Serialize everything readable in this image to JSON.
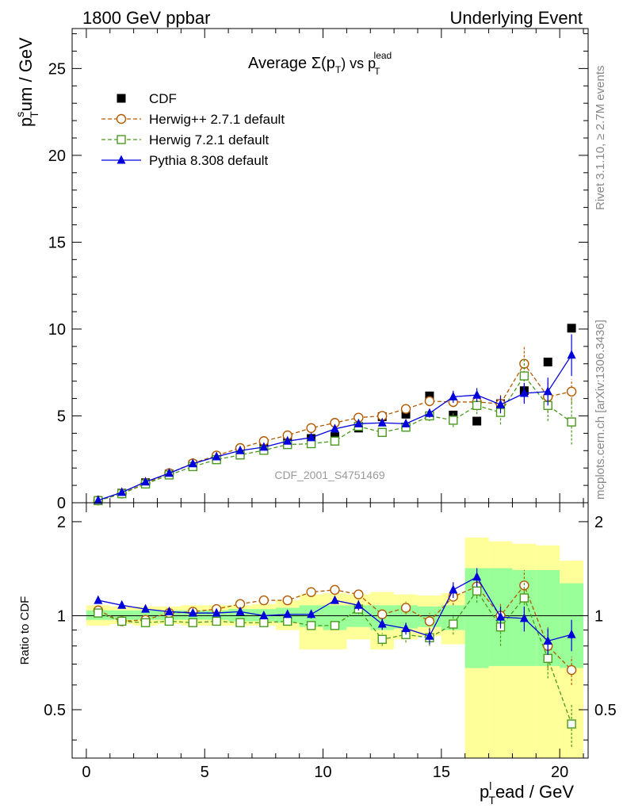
{
  "header": {
    "left": "1800 GeV ppbar",
    "right": "Underlying Event"
  },
  "side_labels": {
    "rivet": "Rivet 3.1.10, ≥ 2.7M events",
    "mcplots": "mcplots.cern.ch [arXiv:1306.3436]"
  },
  "chart_data": [
    {
      "type": "scatter",
      "title_main": "Average Σ(p",
      "title_sub_T": "T",
      "title_mid": ") vs p",
      "title_sup_lead": "lead",
      "ylabel_main": "p",
      "ylabel_sup": "s",
      "ylabel_sub": "T",
      "ylabel_rest": "um / GeV",
      "watermark": "CDF_2001_S4751469",
      "xlim": [
        -0.6,
        21.2
      ],
      "ylim": [
        0,
        27.3
      ],
      "yticks": [
        0,
        5,
        10,
        15,
        20,
        25
      ],
      "legend_position": "top-left",
      "x": [
        0.5,
        1.5,
        2.5,
        3.5,
        4.5,
        5.5,
        6.5,
        7.5,
        8.5,
        9.5,
        10.5,
        11.5,
        12.5,
        13.5,
        14.5,
        15.5,
        16.5,
        17.5,
        18.5,
        19.5,
        20.5
      ],
      "series": [
        {
          "name": "CDF",
          "key": "cdf",
          "color": "#000000",
          "marker": "square-filled",
          "values": [
            0.12,
            0.55,
            1.15,
            1.65,
            2.2,
            2.6,
            2.9,
            3.2,
            3.5,
            3.7,
            3.8,
            4.3,
            4.95,
            5.1,
            6.15,
            5.05,
            4.7,
            5.7,
            6.45,
            8.1,
            10.05
          ]
        },
        {
          "name": "Herwig++ 2.7.1 default",
          "key": "herwigpp",
          "color": "#b35900",
          "marker": "circle-open",
          "dashed": true,
          "values": [
            0.13,
            0.53,
            1.12,
            1.7,
            2.27,
            2.72,
            3.15,
            3.55,
            3.88,
            4.3,
            4.6,
            4.9,
            5.0,
            5.4,
            5.85,
            5.8,
            5.8,
            5.7,
            8.0,
            6.1,
            6.4
          ],
          "errors": [
            0,
            0,
            0,
            0,
            0,
            0,
            0,
            0,
            0,
            0.1,
            0.1,
            0.1,
            0.15,
            0.2,
            0.3,
            0.3,
            0.5,
            0.5,
            1.0,
            0.9,
            0.7
          ]
        },
        {
          "name": "Herwig 7.2.1 default",
          "key": "herwig7",
          "color": "#4a9a1e",
          "marker": "square-open",
          "dashed": true,
          "values": [
            0.12,
            0.52,
            1.08,
            1.6,
            2.08,
            2.48,
            2.75,
            3.02,
            3.35,
            3.4,
            3.55,
            4.4,
            4.05,
            4.35,
            5.0,
            4.75,
            5.6,
            5.2,
            7.3,
            5.6,
            4.65
          ],
          "errors": [
            0,
            0,
            0,
            0,
            0,
            0,
            0,
            0,
            0,
            0.1,
            0.1,
            0.1,
            0.15,
            0.2,
            0.3,
            0.4,
            0.5,
            0.7,
            1.0,
            0.9,
            1.3
          ]
        },
        {
          "name": "Pythia 8.308 default",
          "key": "pythia",
          "color": "#0000dd",
          "marker": "triangle-filled",
          "values": [
            0.14,
            0.6,
            1.2,
            1.7,
            2.25,
            2.65,
            3.0,
            3.2,
            3.55,
            3.75,
            4.25,
            4.55,
            4.6,
            4.55,
            5.15,
            6.1,
            6.2,
            5.65,
            6.3,
            6.4,
            8.5
          ],
          "errors": [
            0,
            0,
            0,
            0,
            0,
            0,
            0,
            0,
            0,
            0.1,
            0.1,
            0.15,
            0.15,
            0.2,
            0.25,
            0.35,
            0.4,
            0.5,
            0.6,
            0.8,
            1.2
          ]
        }
      ]
    },
    {
      "type": "scatter",
      "ylabel": "Ratio to CDF",
      "xlabel_main": "p",
      "xlabel_sup": "l",
      "xlabel_sub": "T",
      "xlabel_rest": "ead / GeV",
      "xlim": [
        -0.6,
        21.2
      ],
      "ylim": [
        0.35,
        2.3
      ],
      "xticks": [
        0,
        5,
        10,
        15,
        20
      ],
      "yticks": [
        0.5,
        1,
        2
      ],
      "bins": [
        [
          0,
          1
        ],
        [
          1,
          2
        ],
        [
          2,
          3
        ],
        [
          3,
          4
        ],
        [
          4,
          5
        ],
        [
          5,
          6
        ],
        [
          6,
          7
        ],
        [
          7,
          8
        ],
        [
          8,
          9
        ],
        [
          9,
          10
        ],
        [
          10,
          11
        ],
        [
          11,
          12
        ],
        [
          12,
          13
        ],
        [
          13,
          14
        ],
        [
          14,
          15
        ],
        [
          15,
          16
        ],
        [
          16,
          17
        ],
        [
          17,
          18
        ],
        [
          18,
          19
        ],
        [
          19,
          20
        ],
        [
          20,
          21
        ]
      ],
      "band_yellow": [
        [
          0.93,
          1.08
        ],
        [
          0.94,
          1.07
        ],
        [
          0.93,
          1.07
        ],
        [
          0.94,
          1.07
        ],
        [
          0.93,
          1.08
        ],
        [
          0.93,
          1.08
        ],
        [
          0.93,
          1.08
        ],
        [
          0.93,
          1.09
        ],
        [
          0.9,
          1.12
        ],
        [
          0.78,
          1.17
        ],
        [
          0.78,
          1.18
        ],
        [
          0.84,
          1.17
        ],
        [
          0.78,
          1.19
        ],
        [
          0.84,
          1.17
        ],
        [
          0.86,
          1.16
        ],
        [
          0.81,
          1.18
        ],
        [
          0.35,
          1.78
        ],
        [
          0.35,
          1.73
        ],
        [
          0.35,
          1.7
        ],
        [
          0.35,
          1.68
        ],
        [
          0.35,
          1.5
        ]
      ],
      "band_green": [
        [
          0.97,
          1.04
        ],
        [
          0.97,
          1.04
        ],
        [
          0.97,
          1.04
        ],
        [
          0.97,
          1.04
        ],
        [
          0.97,
          1.04
        ],
        [
          0.97,
          1.04
        ],
        [
          0.96,
          1.05
        ],
        [
          0.96,
          1.05
        ],
        [
          0.95,
          1.06
        ],
        [
          0.92,
          1.08
        ],
        [
          0.9,
          1.08
        ],
        [
          0.92,
          1.08
        ],
        [
          0.9,
          1.08
        ],
        [
          0.91,
          1.08
        ],
        [
          0.92,
          1.07
        ],
        [
          0.9,
          1.08
        ],
        [
          0.68,
          1.42
        ],
        [
          0.69,
          1.42
        ],
        [
          0.69,
          1.4
        ],
        [
          0.69,
          1.4
        ],
        [
          0.68,
          1.27
        ]
      ],
      "x": [
        0.5,
        1.5,
        2.5,
        3.5,
        4.5,
        5.5,
        6.5,
        7.5,
        8.5,
        9.5,
        10.5,
        11.5,
        12.5,
        13.5,
        14.5,
        15.5,
        16.5,
        17.5,
        18.5,
        19.5,
        20.5
      ],
      "series": [
        {
          "name": "Herwig++ 2.7.1 default",
          "key": "herwigpp",
          "color": "#b35900",
          "marker": "circle-open",
          "dashed": true,
          "values": [
            1.04,
            0.96,
            0.97,
            1.02,
            1.03,
            1.05,
            1.09,
            1.12,
            1.12,
            1.19,
            1.21,
            1.17,
            1.01,
            1.06,
            0.96,
            1.15,
            1.24,
            1.0,
            1.25,
            0.8,
            0.67
          ],
          "errors": [
            0.01,
            0.01,
            0.01,
            0.01,
            0.01,
            0.01,
            0.01,
            0.02,
            0.02,
            0.03,
            0.03,
            0.04,
            0.04,
            0.05,
            0.06,
            0.07,
            0.09,
            0.1,
            0.15,
            0.12,
            0.07
          ]
        },
        {
          "name": "Herwig 7.2.1 default",
          "key": "herwig7",
          "color": "#4a9a1e",
          "marker": "square-open",
          "dashed": true,
          "values": [
            1.02,
            0.96,
            0.95,
            0.96,
            0.95,
            0.96,
            0.95,
            0.95,
            0.96,
            0.93,
            0.93,
            1.05,
            0.84,
            0.87,
            0.85,
            0.94,
            1.2,
            0.92,
            1.14,
            0.73,
            0.45
          ],
          "errors": [
            0.01,
            0.01,
            0.01,
            0.01,
            0.01,
            0.01,
            0.01,
            0.02,
            0.02,
            0.03,
            0.03,
            0.04,
            0.04,
            0.05,
            0.05,
            0.07,
            0.1,
            0.12,
            0.15,
            0.1,
            0.07
          ]
        },
        {
          "name": "Pythia 8.308 default",
          "key": "pythia",
          "color": "#0000dd",
          "marker": "triangle-filled",
          "values": [
            1.12,
            1.08,
            1.05,
            1.03,
            1.02,
            1.02,
            1.03,
            1.0,
            1.01,
            1.01,
            1.12,
            1.08,
            0.94,
            0.91,
            0.86,
            1.21,
            1.33,
            0.99,
            0.98,
            0.83,
            0.87
          ],
          "errors": [
            0.01,
            0.01,
            0.01,
            0.01,
            0.01,
            0.01,
            0.01,
            0.02,
            0.02,
            0.03,
            0.03,
            0.04,
            0.04,
            0.04,
            0.05,
            0.07,
            0.09,
            0.08,
            0.09,
            0.08,
            0.1
          ]
        }
      ]
    }
  ]
}
